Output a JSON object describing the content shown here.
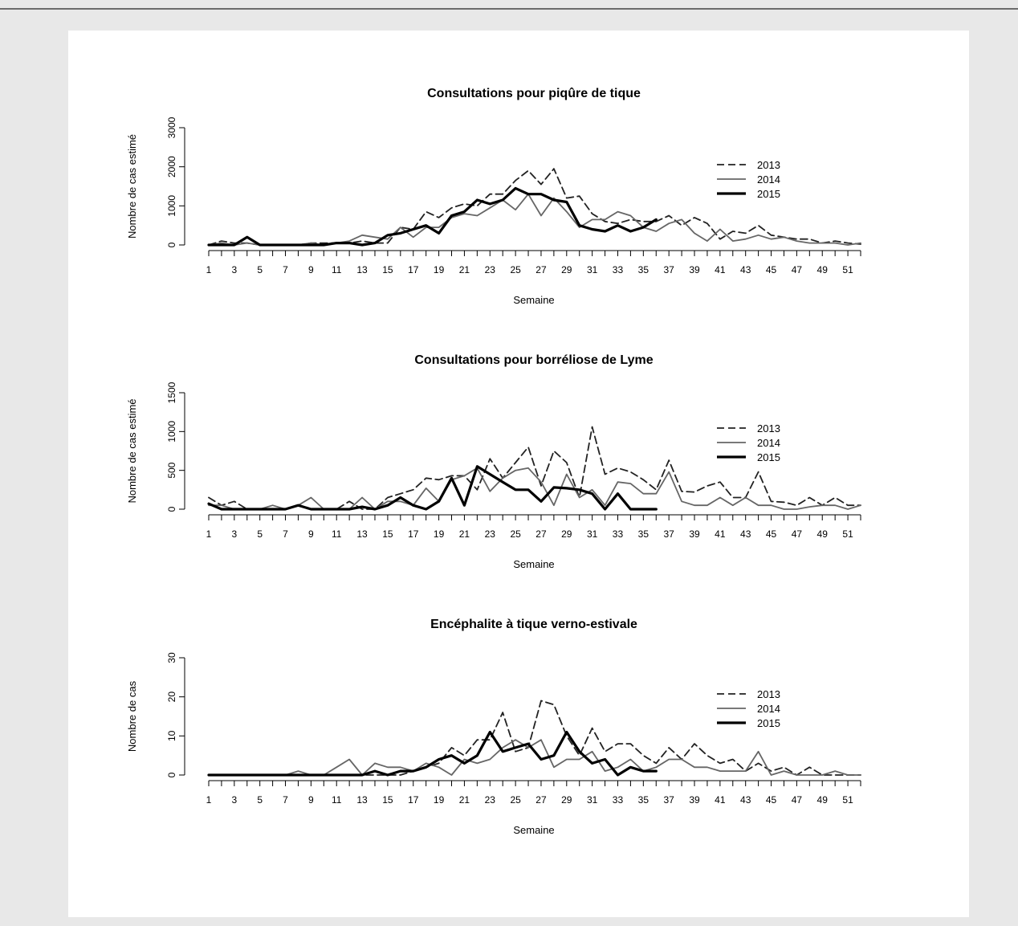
{
  "colors": {
    "page_bg": "#e8e8e8",
    "panel_bg": "#ffffff",
    "s2013": "#222222",
    "s2014": "#666666",
    "s2015": "#000000"
  },
  "chart_data": [
    {
      "type": "line",
      "title": "Consultations pour piqûre de tique",
      "xlabel": "Semaine",
      "ylabel": "Nombre de cas estimé",
      "ylim": [
        0,
        3000
      ],
      "yticks": [
        0,
        1000,
        2000,
        3000
      ],
      "xlim": [
        1,
        52
      ],
      "xticklabels": [
        1,
        3,
        5,
        7,
        9,
        11,
        13,
        15,
        17,
        19,
        21,
        23,
        25,
        27,
        29,
        31,
        33,
        35,
        37,
        39,
        41,
        43,
        45,
        47,
        49,
        51
      ],
      "grid": false,
      "legend_position": "top-right",
      "series": [
        {
          "name": "2013",
          "style": "dashed",
          "values": [
            0,
            100,
            50,
            50,
            0,
            0,
            0,
            0,
            50,
            50,
            50,
            50,
            100,
            50,
            50,
            450,
            400,
            850,
            700,
            950,
            1050,
            1000,
            1300,
            1300,
            1650,
            1900,
            1550,
            1950,
            1200,
            1250,
            800,
            600,
            550,
            650,
            600,
            600,
            750,
            500,
            700,
            550,
            150,
            350,
            300,
            500,
            250,
            200,
            150,
            150,
            50,
            100,
            50,
            20
          ]
        },
        {
          "name": "2014",
          "style": "solid",
          "values": [
            0,
            50,
            0,
            50,
            0,
            0,
            0,
            0,
            50,
            0,
            50,
            100,
            250,
            200,
            150,
            450,
            200,
            450,
            450,
            700,
            800,
            750,
            950,
            1150,
            900,
            1300,
            750,
            1200,
            850,
            450,
            650,
            650,
            850,
            750,
            450,
            350,
            550,
            650,
            300,
            100,
            400,
            100,
            150,
            250,
            150,
            200,
            100,
            50,
            50,
            50,
            0,
            50
          ]
        },
        {
          "name": "2015",
          "style": "thick",
          "values": [
            0,
            0,
            0,
            200,
            0,
            0,
            0,
            0,
            0,
            0,
            50,
            50,
            0,
            50,
            250,
            300,
            400,
            500,
            300,
            750,
            850,
            1150,
            1050,
            1150,
            1450,
            1300,
            1300,
            1150,
            1100,
            500,
            400,
            350,
            500,
            350,
            450,
            650
          ]
        }
      ]
    },
    {
      "type": "line",
      "title": "Consultations pour borréliose de Lyme",
      "xlabel": "Semaine",
      "ylabel": "Nombre de cas estimé",
      "ylim": [
        0,
        1500
      ],
      "yticks": [
        0,
        500,
        1000,
        1500
      ],
      "xlim": [
        1,
        52
      ],
      "xticklabels": [
        1,
        3,
        5,
        7,
        9,
        11,
        13,
        15,
        17,
        19,
        21,
        23,
        25,
        27,
        29,
        31,
        33,
        35,
        37,
        39,
        41,
        43,
        45,
        47,
        49,
        51
      ],
      "grid": false,
      "legend_position": "top-right",
      "series": [
        {
          "name": "2013",
          "style": "dashed",
          "values": [
            150,
            50,
            100,
            0,
            0,
            0,
            0,
            50,
            0,
            0,
            0,
            100,
            0,
            0,
            150,
            200,
            250,
            400,
            380,
            430,
            430,
            250,
            650,
            400,
            600,
            800,
            300,
            750,
            600,
            150,
            1060,
            450,
            530,
            480,
            380,
            250,
            630,
            230,
            220,
            300,
            350,
            150,
            150,
            480,
            100,
            90,
            50,
            150,
            50,
            150,
            50,
            50
          ]
        },
        {
          "name": "2014",
          "style": "solid",
          "values": [
            50,
            50,
            0,
            0,
            0,
            50,
            0,
            50,
            150,
            0,
            0,
            0,
            150,
            0,
            100,
            100,
            50,
            270,
            100,
            380,
            430,
            530,
            230,
            400,
            500,
            530,
            350,
            50,
            450,
            150,
            250,
            50,
            350,
            330,
            200,
            200,
            480,
            100,
            50,
            50,
            150,
            50,
            150,
            50,
            50,
            0,
            0,
            30,
            50,
            50,
            0,
            50
          ]
        },
        {
          "name": "2015",
          "style": "thick",
          "values": [
            70,
            0,
            0,
            0,
            0,
            0,
            0,
            50,
            0,
            0,
            0,
            0,
            30,
            0,
            50,
            150,
            50,
            0,
            100,
            400,
            50,
            550,
            450,
            350,
            250,
            250,
            100,
            280,
            270,
            250,
            200,
            0,
            200,
            0,
            0,
            0
          ]
        }
      ]
    },
    {
      "type": "line",
      "title": "Encéphalite à tique verno-estivale",
      "xlabel": "Semaine",
      "ylabel": "Nombre de cas",
      "ylim": [
        0,
        30
      ],
      "yticks": [
        0,
        10,
        20,
        30
      ],
      "xlim": [
        1,
        52
      ],
      "xticklabels": [
        1,
        3,
        5,
        7,
        9,
        11,
        13,
        15,
        17,
        19,
        21,
        23,
        25,
        27,
        29,
        31,
        33,
        35,
        37,
        39,
        41,
        43,
        45,
        47,
        49,
        51
      ],
      "grid": false,
      "legend_position": "top-right",
      "series": [
        {
          "name": "2013",
          "style": "dashed",
          "values": [
            0,
            0,
            0,
            0,
            0,
            0,
            0,
            0,
            0,
            0,
            0,
            0,
            0,
            0,
            0,
            0,
            1,
            2,
            3,
            7,
            5,
            9,
            9,
            16,
            6,
            7,
            19,
            18,
            10,
            5,
            12,
            6,
            8,
            8,
            5,
            3,
            7,
            4,
            8,
            5,
            3,
            4,
            1,
            3,
            1,
            2,
            0,
            2,
            0,
            0,
            0,
            0
          ]
        },
        {
          "name": "2014",
          "style": "solid",
          "values": [
            0,
            0,
            0,
            0,
            0,
            0,
            0,
            1,
            0,
            0,
            2,
            4,
            0,
            3,
            2,
            2,
            1,
            3,
            2,
            0,
            4,
            3,
            4,
            7,
            9,
            7,
            9,
            2,
            4,
            4,
            6,
            1,
            2,
            4,
            1,
            2,
            4,
            4,
            2,
            2,
            1,
            1,
            1,
            6,
            0,
            1,
            0,
            0,
            0,
            1,
            0,
            0
          ]
        },
        {
          "name": "2015",
          "style": "thick",
          "values": [
            0,
            0,
            0,
            0,
            0,
            0,
            0,
            0,
            0,
            0,
            0,
            0,
            0,
            1,
            0,
            1,
            1,
            2,
            4,
            5,
            3,
            5,
            11,
            6,
            7,
            8,
            4,
            5,
            11,
            6,
            3,
            4,
            0,
            2,
            1,
            1
          ]
        }
      ]
    }
  ]
}
